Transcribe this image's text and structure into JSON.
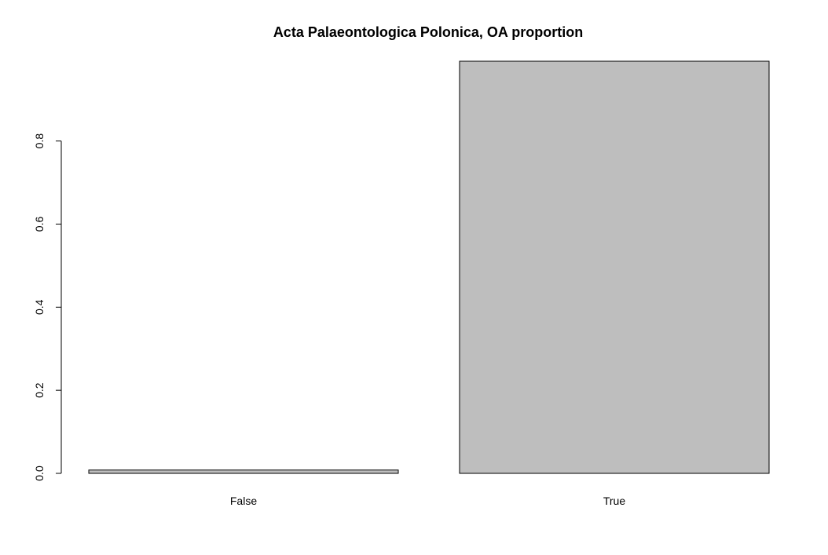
{
  "chart_data": {
    "type": "bar",
    "title": "Acta Palaeontologica Polonica, OA proportion",
    "xlabel": "",
    "ylabel": "",
    "categories": [
      "False",
      "True"
    ],
    "values": [
      0.008,
      0.992
    ],
    "ylim": [
      0,
      0.992
    ],
    "yticks": [
      "0.0",
      "0.2",
      "0.4",
      "0.6",
      "0.8"
    ],
    "ytick_values": [
      0.0,
      0.2,
      0.4,
      0.6,
      0.8
    ],
    "grid": false,
    "bar_fill": "#bebebe",
    "bar_stroke": "#000000"
  }
}
